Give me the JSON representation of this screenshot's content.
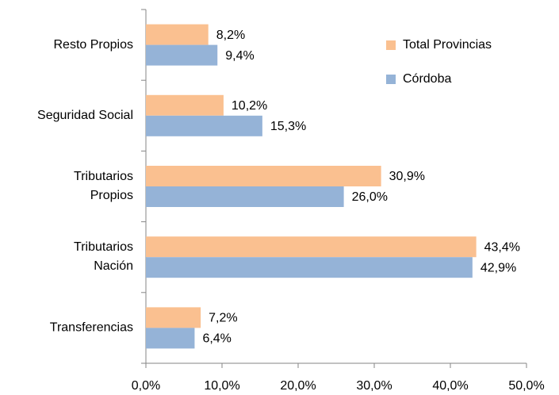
{
  "chart_data": {
    "type": "bar",
    "orientation": "horizontal",
    "categories": [
      "Resto Propios",
      "Seguridad Social",
      "Tributarios\nPropios",
      "Tributarios\nNación",
      "Transferencias"
    ],
    "series": [
      {
        "name": "Total Provincias",
        "color": "#fac090",
        "values": [
          8.2,
          10.2,
          30.9,
          43.4,
          7.2
        ],
        "value_labels": [
          "8,2%",
          "10,2%",
          "30,9%",
          "43,4%",
          "7,2%"
        ]
      },
      {
        "name": "Córdoba",
        "color": "#95b3d7",
        "values": [
          9.4,
          15.3,
          26.0,
          42.9,
          6.4
        ],
        "value_labels": [
          "9,4%",
          "15,3%",
          "26,0%",
          "42,9%",
          "6,4%"
        ]
      }
    ],
    "xlim": [
      0,
      50
    ],
    "xticks": [
      {
        "value": 0,
        "label": "0,0%"
      },
      {
        "value": 10,
        "label": "10,0%"
      },
      {
        "value": 20,
        "label": "20,0%"
      },
      {
        "value": 30,
        "label": "30,0%"
      },
      {
        "value": 40,
        "label": "40,0%"
      },
      {
        "value": 50,
        "label": "50,0%"
      }
    ],
    "grid": false,
    "legend": "top-right"
  }
}
